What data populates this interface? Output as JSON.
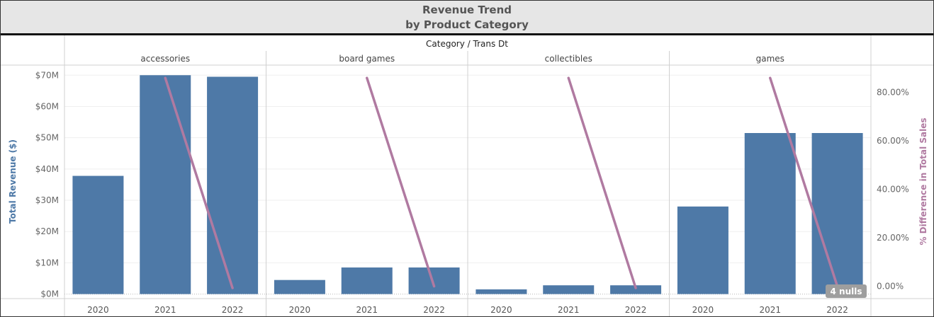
{
  "title": "Revenue Trend",
  "subtitle": "by Product Category",
  "header_label": "Category / Trans Dt",
  "null_badge": "4 nulls",
  "colors": {
    "bar": "#4e79a7",
    "line": "#b07aa1",
    "left_axis": "#4e79a7",
    "right_axis": "#b07aa1"
  },
  "chart_data": {
    "type": "bar",
    "title": "Revenue Trend",
    "subtitle": "by Product Category",
    "panes": [
      "accessories",
      "board games",
      "collectibles",
      "games"
    ],
    "categories": [
      "2020",
      "2021",
      "2022"
    ],
    "series": [
      {
        "name": "Total Revenue ($)",
        "type": "bar",
        "axis": "left",
        "values": {
          "accessories": [
            37800000,
            70000000,
            69500000
          ],
          "board games": [
            4500000,
            8500000,
            8500000
          ],
          "collectibles": [
            1500000,
            2800000,
            2800000
          ],
          "games": [
            28000000,
            51500000,
            51500000
          ]
        }
      },
      {
        "name": "% Difference in Total Sales",
        "type": "line",
        "axis": "right",
        "values": {
          "accessories": [
            null,
            86.0,
            -0.7
          ],
          "board games": [
            null,
            86.0,
            0.0
          ],
          "collectibles": [
            null,
            86.0,
            -0.7
          ],
          "games": [
            null,
            86.0,
            0.0
          ]
        }
      }
    ],
    "y_left": {
      "label": "Total Revenue ($)",
      "ticks": [
        0,
        10000000,
        20000000,
        30000000,
        40000000,
        50000000,
        60000000,
        70000000
      ],
      "tick_labels": [
        "$0M",
        "$10M",
        "$20M",
        "$30M",
        "$40M",
        "$50M",
        "$60M",
        "$70M"
      ],
      "ylim": [
        -1000000,
        73000000
      ]
    },
    "y_right": {
      "label": "% Difference in Total Sales",
      "ticks": [
        0,
        20,
        40,
        60,
        80
      ],
      "tick_labels": [
        "0.00%",
        "20.00%",
        "40.00%",
        "60.00%",
        "80.00%"
      ],
      "ylim": [
        -4.5,
        91
      ]
    },
    "grid": true,
    "legend": "none"
  }
}
